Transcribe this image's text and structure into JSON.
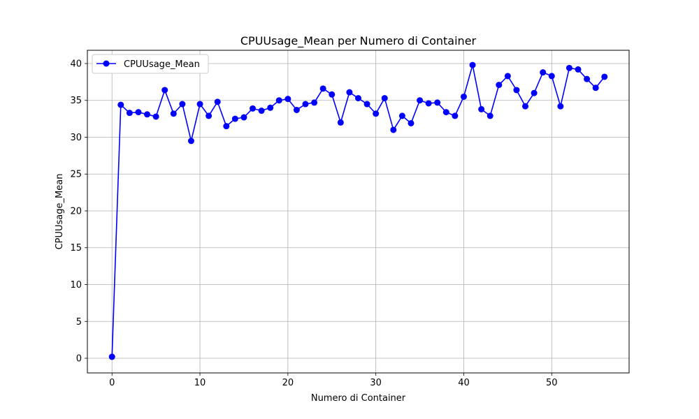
{
  "chart_data": {
    "type": "line",
    "title": "CPUUsage_Mean per Numero di Container",
    "xlabel": "Numero di Container",
    "ylabel": "CPUUsage_Mean",
    "xlim": [
      -2.8,
      58.8
    ],
    "ylim": [
      -1.99,
      41.8
    ],
    "xticks": [
      0,
      10,
      20,
      30,
      40,
      50
    ],
    "yticks": [
      0,
      5,
      10,
      15,
      20,
      25,
      30,
      35,
      40
    ],
    "grid": true,
    "legend": "top-left",
    "series": [
      {
        "name": "CPUUsage_Mean",
        "color": "#0000ff",
        "marker": "circle",
        "x": [
          0,
          1,
          2,
          3,
          4,
          5,
          6,
          7,
          8,
          9,
          10,
          11,
          12,
          13,
          14,
          15,
          16,
          17,
          18,
          19,
          20,
          21,
          22,
          23,
          24,
          25,
          26,
          27,
          28,
          29,
          30,
          31,
          32,
          33,
          34,
          35,
          36,
          37,
          38,
          39,
          40,
          41,
          42,
          43,
          44,
          45,
          46,
          47,
          48,
          49,
          50,
          51,
          52,
          53,
          54,
          55,
          56
        ],
        "y": [
          0.2,
          34.4,
          33.3,
          33.4,
          33.1,
          32.8,
          36.4,
          33.2,
          34.5,
          29.5,
          34.5,
          32.9,
          34.8,
          31.5,
          32.5,
          32.7,
          33.9,
          33.6,
          34.0,
          35.0,
          35.2,
          33.7,
          34.5,
          34.7,
          36.6,
          35.8,
          32.0,
          36.1,
          35.3,
          34.5,
          33.2,
          35.3,
          31.0,
          32.9,
          31.9,
          35.0,
          34.6,
          34.7,
          33.4,
          32.9,
          35.5,
          39.8,
          33.8,
          32.9,
          37.1,
          38.3,
          36.4,
          34.2,
          36.0,
          38.8,
          38.3,
          34.2,
          39.4,
          39.2,
          37.9,
          36.7,
          38.2
        ]
      }
    ]
  }
}
